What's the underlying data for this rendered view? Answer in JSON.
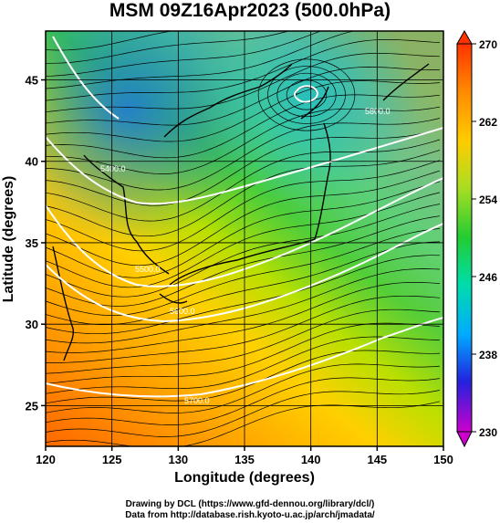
{
  "title": "MSM 09Z16Apr2023 (500.0hPa)",
  "x_axis": {
    "label": "Longitude (degrees)",
    "ticks": [
      120,
      125,
      130,
      135,
      140,
      145,
      150
    ]
  },
  "y_axis": {
    "label": "Latitude  (degrees)",
    "ticks": [
      25,
      30,
      35,
      40,
      45
    ]
  },
  "colorbar": {
    "ticks": [
      270,
      262,
      254,
      246,
      238,
      230
    ],
    "min": 230,
    "max": 270,
    "colors": [
      "#cc00cc",
      "#2222dd",
      "#00aaff",
      "#00ddaa",
      "#22cc33",
      "#aadd22",
      "#ffcc00",
      "#ff8800",
      "#ff3300"
    ]
  },
  "contour_labels": [
    "5400.0",
    "5500.0",
    "5600.0",
    "5700.0",
    "5800.0"
  ],
  "credits": {
    "line1": "Drawing by DCL (https://www.gfd-dennou.org/library/dcl/)",
    "line2": "Data from http://database.rish.kyoto-u.ac.jp/arch/jmadata/"
  }
}
